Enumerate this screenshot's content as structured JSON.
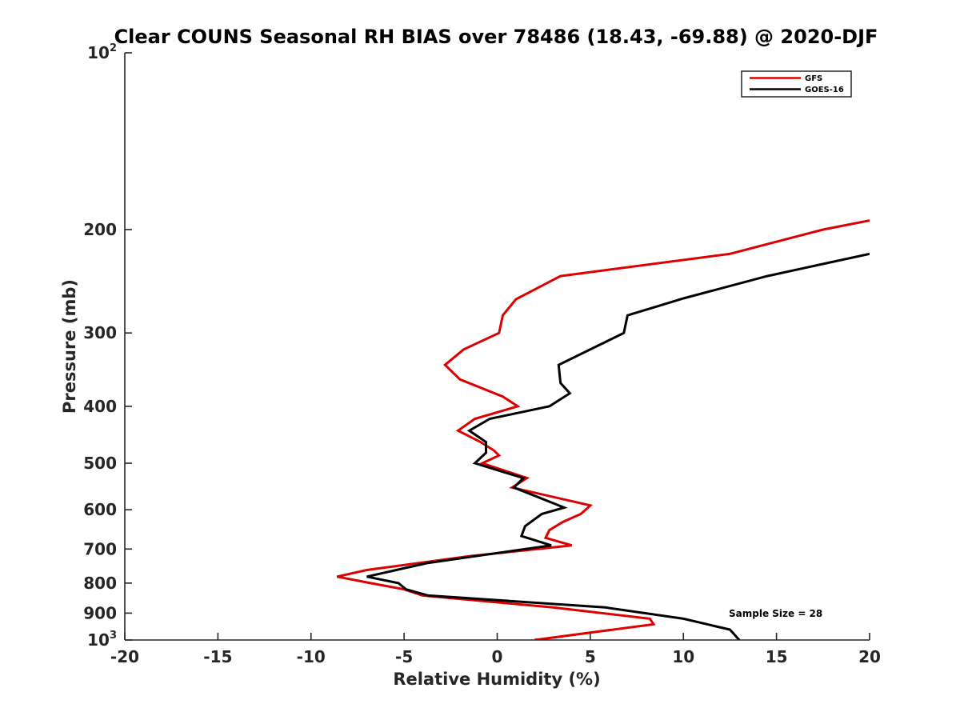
{
  "chart_data": {
    "type": "line",
    "title": "Clear COUNS Seasonal RH BIAS over 78486 (18.43, -69.88) @ 2020-DJF",
    "xlabel": "Relative Humidity (%)",
    "ylabel": "Pressure (mb)",
    "xlim": [
      -20,
      20
    ],
    "ylim": [
      100,
      1000
    ],
    "yscale": "log",
    "yreverse": true,
    "x_ticks": [
      "-20",
      "-15",
      "-10",
      "-5",
      "0",
      "5",
      "10",
      "15",
      "20"
    ],
    "y_ticks": [
      {
        "value": 100,
        "base": "10",
        "exp": "2"
      },
      {
        "value": 200,
        "label": "200"
      },
      {
        "value": 300,
        "label": "300"
      },
      {
        "value": 400,
        "label": "400"
      },
      {
        "value": 500,
        "label": "500"
      },
      {
        "value": 600,
        "label": "600"
      },
      {
        "value": 700,
        "label": "700"
      },
      {
        "value": 800,
        "label": "800"
      },
      {
        "value": 900,
        "label": "900"
      },
      {
        "value": 1000,
        "base": "10",
        "exp": "3"
      }
    ],
    "legend_position": "top-right",
    "annotation": "Sample Size = 28",
    "series": [
      {
        "name": "GFS",
        "color": "#dd0000",
        "points": [
          [
            20,
            193
          ],
          [
            17.5,
            200
          ],
          [
            12.5,
            220
          ],
          [
            3.4,
            240
          ],
          [
            1.0,
            263
          ],
          [
            0.3,
            280
          ],
          [
            0.1,
            300
          ],
          [
            -1.8,
            320
          ],
          [
            -2.8,
            340
          ],
          [
            -2.0,
            360
          ],
          [
            0.3,
            385
          ],
          [
            1.1,
            400
          ],
          [
            -1.2,
            420
          ],
          [
            -2.1,
            440
          ],
          [
            -0.9,
            460
          ],
          [
            -0.2,
            475
          ],
          [
            0.1,
            485
          ],
          [
            -0.8,
            500
          ],
          [
            1.6,
            530
          ],
          [
            0.8,
            550
          ],
          [
            5.0,
            590
          ],
          [
            4.5,
            610
          ],
          [
            3.5,
            630
          ],
          [
            2.8,
            650
          ],
          [
            2.6,
            670
          ],
          [
            4.0,
            690
          ],
          [
            -1.5,
            720
          ],
          [
            -7.0,
            760
          ],
          [
            -8.6,
            780
          ],
          [
            -6.8,
            800
          ],
          [
            -5.0,
            820
          ],
          [
            -4.0,
            840
          ],
          [
            3.0,
            880
          ],
          [
            8.2,
            920
          ],
          [
            8.4,
            940
          ],
          [
            2.0,
            1000
          ]
        ]
      },
      {
        "name": "GOES-16",
        "color": "#000000",
        "points": [
          [
            20,
            220
          ],
          [
            14.5,
            240
          ],
          [
            10.0,
            262
          ],
          [
            7.0,
            280
          ],
          [
            6.8,
            300
          ],
          [
            3.3,
            340
          ],
          [
            3.4,
            365
          ],
          [
            3.9,
            380
          ],
          [
            2.8,
            400
          ],
          [
            -0.4,
            420
          ],
          [
            -1.5,
            440
          ],
          [
            -0.6,
            460
          ],
          [
            -0.6,
            480
          ],
          [
            -1.2,
            500
          ],
          [
            1.4,
            530
          ],
          [
            0.9,
            550
          ],
          [
            3.6,
            595
          ],
          [
            2.4,
            610
          ],
          [
            1.5,
            640
          ],
          [
            1.3,
            665
          ],
          [
            2.9,
            690
          ],
          [
            -1.2,
            720
          ],
          [
            -3.8,
            740
          ],
          [
            -7.0,
            780
          ],
          [
            -5.3,
            800
          ],
          [
            -4.9,
            820
          ],
          [
            -3.7,
            840
          ],
          [
            5.8,
            880
          ],
          [
            10.0,
            920
          ],
          [
            12.5,
            960
          ],
          [
            13.0,
            1000
          ]
        ]
      }
    ]
  }
}
